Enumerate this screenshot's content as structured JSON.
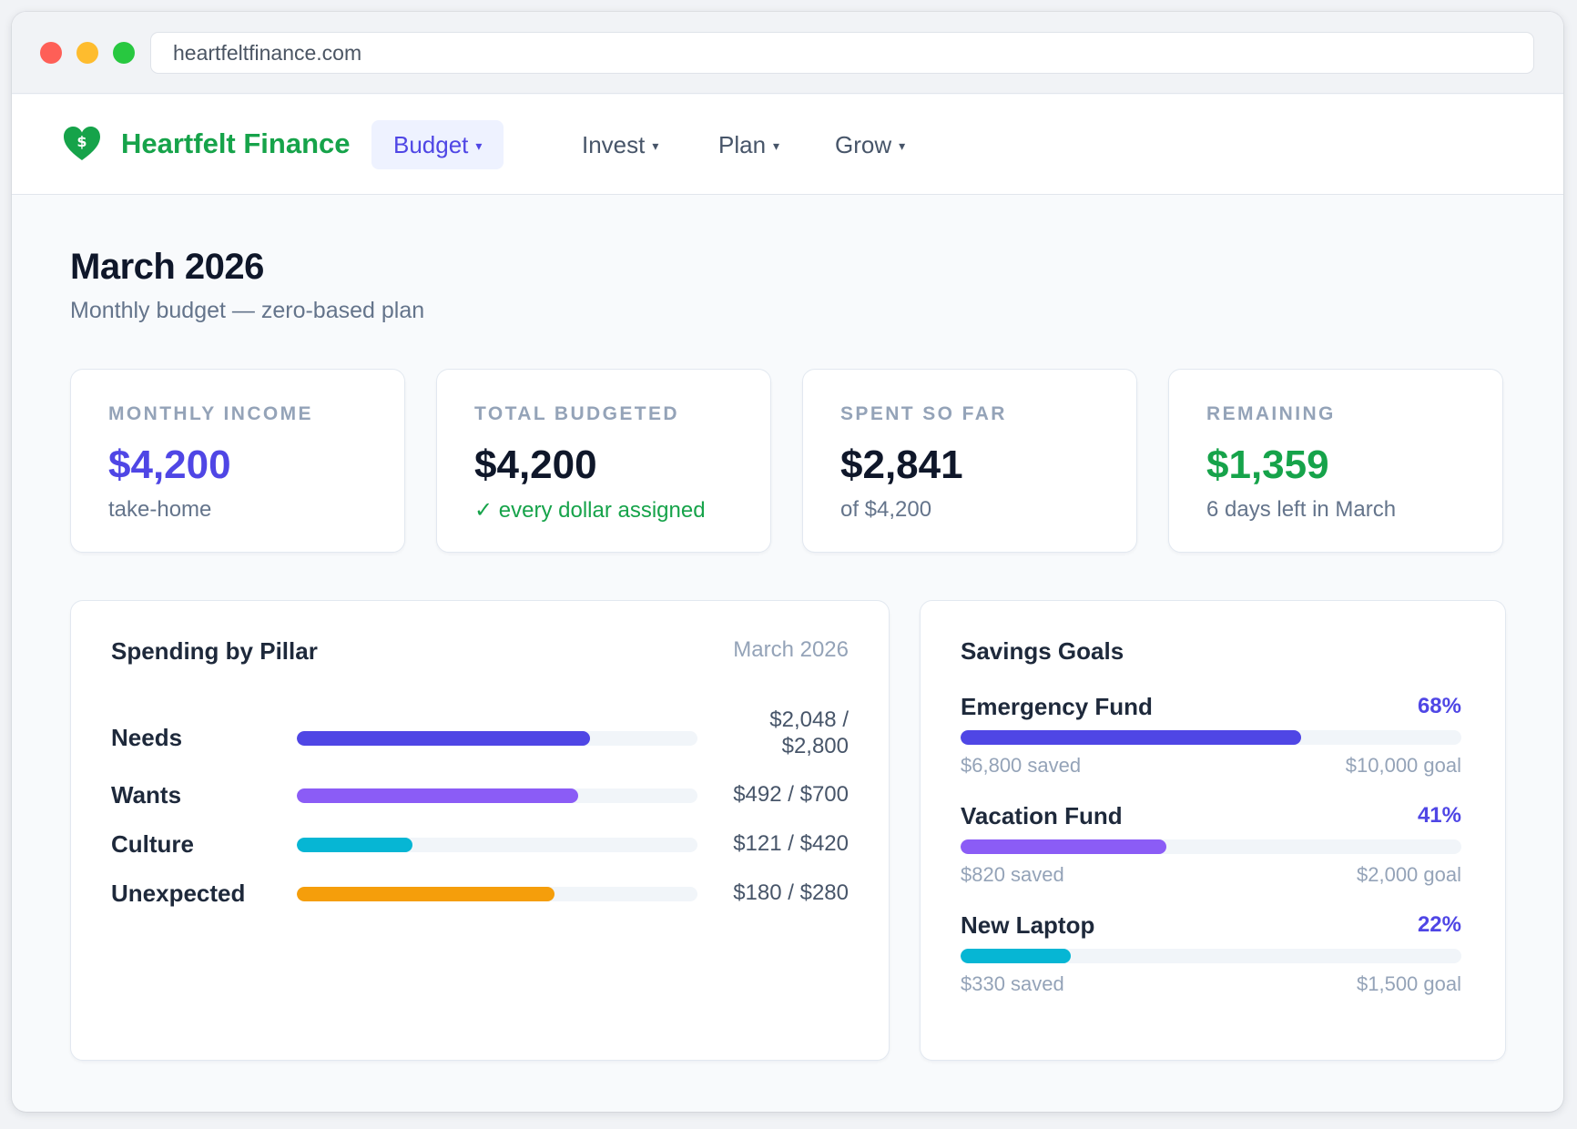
{
  "browser": {
    "url": "heartfeltfinance.com"
  },
  "brand": {
    "name": "Heartfelt Finance",
    "icon": "heart-dollar-icon",
    "color": "#16a34a"
  },
  "nav": {
    "items": [
      {
        "label": "Budget",
        "active": true
      },
      {
        "label": "Invest",
        "active": false
      },
      {
        "label": "Plan",
        "active": false
      },
      {
        "label": "Grow",
        "active": false
      }
    ],
    "caret": "▾"
  },
  "page": {
    "title": "March 2026",
    "subtitle": "Monthly budget — zero-based plan"
  },
  "stats": [
    {
      "label": "MONTHLY INCOME",
      "value": "$4,200",
      "note": "take-home",
      "value_color": "#4f46e5",
      "note_color": "#64748b"
    },
    {
      "label": "TOTAL BUDGETED",
      "value": "$4,200",
      "note": "✓ every dollar assigned",
      "value_color": "#0f172a",
      "note_color": "#16a34a"
    },
    {
      "label": "SPENT SO FAR",
      "value": "$2,841",
      "note": "of $4,200",
      "value_color": "#0f172a",
      "note_color": "#64748b"
    },
    {
      "label": "REMAINING",
      "value": "$1,359",
      "note": "6 days left in March",
      "value_color": "#16a34a",
      "note_color": "#64748b"
    }
  ],
  "spending": {
    "title": "Spending by Pillar",
    "date": "March 2026",
    "pillars": [
      {
        "name": "Needs",
        "amount_line1": "$2,048 /",
        "amount_line2": "$2,800",
        "spent": 2048,
        "budget": 2800,
        "color": "#4f46e5"
      },
      {
        "name": "Wants",
        "amount_line1": "$492 / $700",
        "amount_line2": "",
        "spent": 492,
        "budget": 700,
        "color": "#8b5cf6"
      },
      {
        "name": "Culture",
        "amount_line1": "$121 / $420",
        "amount_line2": "",
        "spent": 121,
        "budget": 420,
        "color": "#06b6d4"
      },
      {
        "name": "Unexpected",
        "amount_line1": "$180 / $280",
        "amount_line2": "",
        "spent": 180,
        "budget": 280,
        "color": "#f59e0b"
      }
    ]
  },
  "savings": {
    "title": "Savings Goals",
    "goals": [
      {
        "name": "Emergency Fund",
        "percent_label": "68%",
        "progress": 0.68,
        "saved": "$6,800 saved",
        "goal": "$10,000 goal",
        "color": "#4f46e5"
      },
      {
        "name": "Vacation Fund",
        "percent_label": "41%",
        "progress": 0.41,
        "saved": "$820 saved",
        "goal": "$2,000 goal",
        "color": "#8b5cf6"
      },
      {
        "name": "New Laptop",
        "percent_label": "22%",
        "progress": 0.22,
        "saved": "$330 saved",
        "goal": "$1,500 goal",
        "color": "#06b6d4"
      }
    ]
  }
}
